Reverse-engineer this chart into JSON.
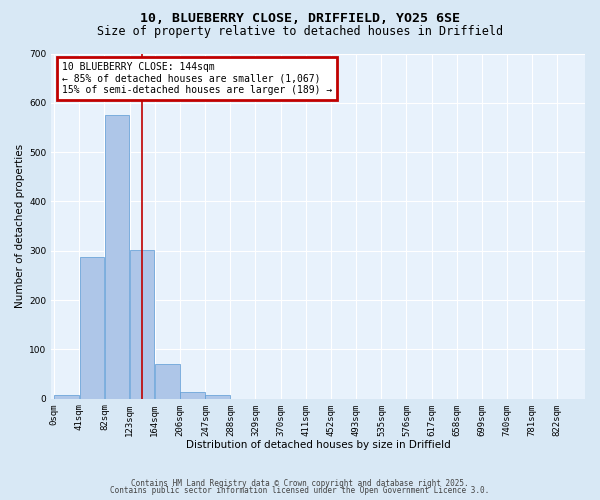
{
  "title": "10, BLUEBERRY CLOSE, DRIFFIELD, YO25 6SE",
  "subtitle": "Size of property relative to detached houses in Driffield",
  "xlabel": "Distribution of detached houses by size in Driffield",
  "ylabel": "Number of detached properties",
  "bin_labels": [
    "0sqm",
    "41sqm",
    "82sqm",
    "123sqm",
    "164sqm",
    "206sqm",
    "247sqm",
    "288sqm",
    "329sqm",
    "370sqm",
    "411sqm",
    "452sqm",
    "493sqm",
    "535sqm",
    "576sqm",
    "617sqm",
    "658sqm",
    "699sqm",
    "740sqm",
    "781sqm",
    "822sqm"
  ],
  "bin_edges": [
    0,
    41,
    82,
    123,
    164,
    206,
    247,
    288,
    329,
    370,
    411,
    452,
    493,
    535,
    576,
    617,
    658,
    699,
    740,
    781,
    822
  ],
  "bar_heights": [
    7,
    288,
    575,
    302,
    70,
    13,
    8,
    0,
    0,
    0,
    0,
    0,
    0,
    0,
    0,
    0,
    0,
    0,
    0,
    0
  ],
  "bar_color": "#aec6e8",
  "bar_edge_color": "#5b9bd5",
  "property_size": 144,
  "vline_color": "#c00000",
  "annotation_text": "10 BLUEBERRY CLOSE: 144sqm\n← 85% of detached houses are smaller (1,067)\n15% of semi-detached houses are larger (189) →",
  "annotation_box_color": "#c00000",
  "annotation_text_color": "#000000",
  "annotation_bg_color": "#ffffff",
  "ylim": [
    0,
    700
  ],
  "yticks": [
    0,
    100,
    200,
    300,
    400,
    500,
    600,
    700
  ],
  "bg_color": "#d8e8f5",
  "plot_bg_color": "#e8f2fc",
  "grid_color": "#ffffff",
  "footer_line1": "Contains HM Land Registry data © Crown copyright and database right 2025.",
  "footer_line2": "Contains public sector information licensed under the Open Government Licence 3.0.",
  "title_fontsize": 9.5,
  "subtitle_fontsize": 8.5,
  "axis_label_fontsize": 7.5,
  "tick_fontsize": 6.5,
  "annotation_fontsize": 7,
  "footer_fontsize": 5.5
}
